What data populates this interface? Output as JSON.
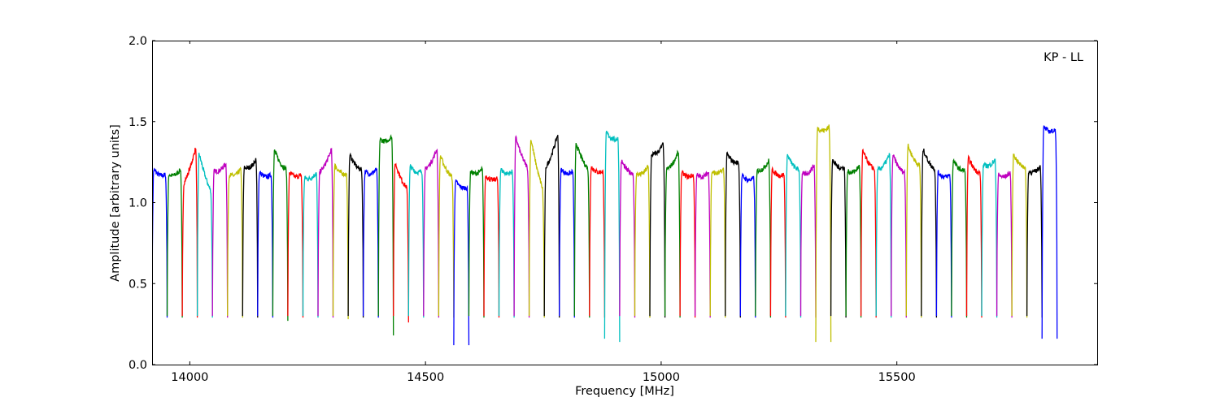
{
  "chart_data": {
    "type": "line",
    "title": "",
    "annotation": "KP - LL",
    "xlabel": "Frequency [MHz]",
    "ylabel": "Amplitude [arbitrary units]",
    "xlim": [
      13920,
      15925
    ],
    "ylim": [
      0.0,
      2.0
    ],
    "xticks": [
      14000,
      14500,
      15000,
      15500
    ],
    "yticks": [
      0.0,
      0.5,
      1.0,
      1.5,
      2.0
    ],
    "xtick_labels": [
      "14000",
      "14500",
      "15000",
      "15500"
    ],
    "ytick_labels": [
      "0.0",
      "0.5",
      "1.0",
      "1.5",
      "2.0"
    ],
    "grid": false,
    "legend": false,
    "channel_width_mhz": 32,
    "first_channel_start_mhz": 13920,
    "series": [
      {
        "color": "#0000ff",
        "values": [
          0.3,
          1.22,
          1.18,
          0.29
        ]
      },
      {
        "color": "#008000",
        "values": [
          0.3,
          1.18,
          1.22,
          0.29
        ]
      },
      {
        "color": "#ff0000",
        "values": [
          0.3,
          1.1,
          1.38,
          0.29
        ]
      },
      {
        "color": "#00bfbf",
        "values": [
          0.3,
          1.35,
          1.05,
          0.29
        ]
      },
      {
        "color": "#bf00bf",
        "values": [
          0.3,
          1.2,
          1.26,
          0.29
        ]
      },
      {
        "color": "#bfbf00",
        "values": [
          0.3,
          1.18,
          1.22,
          0.29
        ]
      },
      {
        "color": "#000000",
        "values": [
          0.3,
          1.22,
          1.28,
          0.29
        ]
      },
      {
        "color": "#0000ff",
        "values": [
          0.3,
          1.2,
          1.18,
          0.29
        ]
      },
      {
        "color": "#008000",
        "values": [
          0.3,
          1.35,
          1.2,
          0.27
        ]
      },
      {
        "color": "#ff0000",
        "values": [
          0.3,
          1.2,
          1.18,
          0.29
        ]
      },
      {
        "color": "#00bfbf",
        "values": [
          0.3,
          1.16,
          1.2,
          0.29
        ]
      },
      {
        "color": "#bf00bf",
        "values": [
          0.3,
          1.18,
          1.36,
          0.29
        ]
      },
      {
        "color": "#bfbf00",
        "values": [
          0.3,
          1.25,
          1.18,
          0.28
        ]
      },
      {
        "color": "#000000",
        "values": [
          0.3,
          1.32,
          1.2,
          0.29
        ]
      },
      {
        "color": "#0000ff",
        "values": [
          0.3,
          1.2,
          1.22,
          0.29
        ]
      },
      {
        "color": "#008000",
        "values": [
          0.3,
          1.4,
          1.42,
          0.18
        ]
      },
      {
        "color": "#ff0000",
        "values": [
          0.3,
          1.28,
          1.08,
          0.26
        ]
      },
      {
        "color": "#00bfbf",
        "values": [
          0.3,
          1.24,
          1.2,
          0.29
        ]
      },
      {
        "color": "#bf00bf",
        "values": [
          0.3,
          1.2,
          1.36,
          0.29
        ]
      },
      {
        "color": "#bfbf00",
        "values": [
          0.3,
          1.32,
          1.15,
          0.29
        ]
      },
      {
        "color": "#0000ff",
        "values": [
          0.12,
          1.15,
          1.1,
          0.12
        ]
      },
      {
        "color": "#008000",
        "values": [
          0.3,
          1.2,
          1.22,
          0.29
        ]
      },
      {
        "color": "#ff0000",
        "values": [
          0.3,
          1.18,
          1.16,
          0.29
        ]
      },
      {
        "color": "#00bfbf",
        "values": [
          0.3,
          1.22,
          1.2,
          0.29
        ]
      },
      {
        "color": "#bf00bf",
        "values": [
          0.3,
          1.44,
          1.2,
          0.29
        ]
      },
      {
        "color": "#bfbf00",
        "values": [
          0.3,
          1.45,
          1.05,
          0.29
        ]
      },
      {
        "color": "#000000",
        "values": [
          0.3,
          1.2,
          1.46,
          0.29
        ]
      },
      {
        "color": "#0000ff",
        "values": [
          0.3,
          1.22,
          1.2,
          0.29
        ]
      },
      {
        "color": "#008000",
        "values": [
          0.3,
          1.4,
          1.2,
          0.29
        ]
      },
      {
        "color": "#ff0000",
        "values": [
          0.3,
          1.24,
          1.2,
          0.29
        ]
      },
      {
        "color": "#00bfbf",
        "values": [
          0.16,
          1.45,
          1.4,
          0.14
        ]
      },
      {
        "color": "#bf00bf",
        "values": [
          0.3,
          1.28,
          1.18,
          0.29
        ]
      },
      {
        "color": "#bfbf00",
        "values": [
          0.3,
          1.18,
          1.24,
          0.29
        ]
      },
      {
        "color": "#000000",
        "values": [
          0.3,
          1.3,
          1.38,
          0.29
        ]
      },
      {
        "color": "#008000",
        "values": [
          0.3,
          1.2,
          1.34,
          0.29
        ]
      },
      {
        "color": "#ff0000",
        "values": [
          0.3,
          1.2,
          1.18,
          0.29
        ]
      },
      {
        "color": "#bf00bf",
        "values": [
          0.3,
          1.18,
          1.2,
          0.29
        ]
      },
      {
        "color": "#bfbf00",
        "values": [
          0.3,
          1.2,
          1.22,
          0.29
        ]
      },
      {
        "color": "#000000",
        "values": [
          0.3,
          1.32,
          1.25,
          0.29
        ]
      },
      {
        "color": "#0000ff",
        "values": [
          0.3,
          1.18,
          1.16,
          0.29
        ]
      },
      {
        "color": "#008000",
        "values": [
          0.3,
          1.2,
          1.28,
          0.29
        ]
      },
      {
        "color": "#ff0000",
        "values": [
          0.3,
          1.22,
          1.18,
          0.29
        ]
      },
      {
        "color": "#00bfbf",
        "values": [
          0.3,
          1.32,
          1.2,
          0.29
        ]
      },
      {
        "color": "#bf00bf",
        "values": [
          0.3,
          1.18,
          1.25,
          0.29
        ]
      },
      {
        "color": "#bfbf00",
        "values": [
          0.14,
          1.47,
          1.48,
          0.14
        ]
      },
      {
        "color": "#000000",
        "values": [
          0.3,
          1.28,
          1.22,
          0.29
        ]
      },
      {
        "color": "#008000",
        "values": [
          0.3,
          1.2,
          1.24,
          0.29
        ]
      },
      {
        "color": "#ff0000",
        "values": [
          0.3,
          1.35,
          1.2,
          0.29
        ]
      },
      {
        "color": "#00bfbf",
        "values": [
          0.3,
          1.2,
          1.32,
          0.29
        ]
      },
      {
        "color": "#bf00bf",
        "values": [
          0.3,
          1.32,
          1.18,
          0.29
        ]
      },
      {
        "color": "#bfbf00",
        "values": [
          0.3,
          1.38,
          1.22,
          0.29
        ]
      },
      {
        "color": "#000000",
        "values": [
          0.3,
          1.36,
          1.2,
          0.29
        ]
      },
      {
        "color": "#0000ff",
        "values": [
          0.3,
          1.2,
          1.18,
          0.29
        ]
      },
      {
        "color": "#008000",
        "values": [
          0.3,
          1.28,
          1.2,
          0.29
        ]
      },
      {
        "color": "#ff0000",
        "values": [
          0.3,
          1.3,
          1.18,
          0.29
        ]
      },
      {
        "color": "#00bfbf",
        "values": [
          0.3,
          1.24,
          1.28,
          0.29
        ]
      },
      {
        "color": "#bf00bf",
        "values": [
          0.3,
          1.18,
          1.2,
          0.29
        ]
      },
      {
        "color": "#bfbf00",
        "values": [
          0.3,
          1.32,
          1.22,
          0.29
        ]
      },
      {
        "color": "#000000",
        "values": [
          0.3,
          1.2,
          1.24,
          0.29
        ]
      },
      {
        "color": "#0000ff",
        "values": [
          0.16,
          1.48,
          1.46,
          0.16
        ]
      }
    ]
  }
}
